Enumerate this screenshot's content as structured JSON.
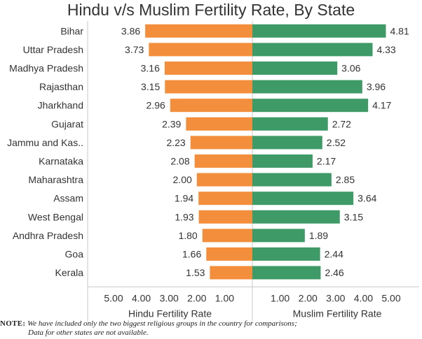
{
  "title": "Hindu v/s Muslim Fertility Rate, By State",
  "note": {
    "label": "NOTE:",
    "line1": "We have included only the two biggest religious groups in the country for comparisons;",
    "line2": "Data for other states are not available."
  },
  "colors": {
    "hindu": "#F28E3C",
    "muslim": "#3E9B68",
    "axis": "#C8C8C8",
    "text": "#333333"
  },
  "chart_data": {
    "type": "bar",
    "title": "Hindu v/s Muslim Fertility Rate, By State",
    "categories": [
      "Bihar",
      "Uttar Pradesh",
      "Madhya Pradesh",
      "Rajasthan",
      "Jharkhand",
      "Gujarat",
      "Jammu and Kas..",
      "Karnataka",
      "Maharashtra",
      "Assam",
      "West Bengal",
      "Andhra Pradesh",
      "Goa",
      "Kerala"
    ],
    "series": [
      {
        "name": "Hindu Fertility Rate",
        "values": [
          3.86,
          3.73,
          3.16,
          3.15,
          2.96,
          2.39,
          2.23,
          2.08,
          2.0,
          1.94,
          1.93,
          1.8,
          1.66,
          1.53
        ],
        "labels": [
          "3.86",
          "3.73",
          "3.16",
          "3.15",
          "2.96",
          "2.39",
          "2.23",
          "2.08",
          "2.00",
          "1.94",
          "1.93",
          "1.80",
          "1.66",
          "1.53"
        ],
        "direction": "left",
        "xlabel": "Hindu Fertility Rate",
        "ticks": [
          "5.00",
          "4.00",
          "3.00",
          "2.00",
          "1.00"
        ],
        "tick_values": [
          5,
          4,
          3,
          2,
          1
        ],
        "xlim": [
          0,
          6
        ]
      },
      {
        "name": "Muslim Fertility Rate",
        "values": [
          4.81,
          4.33,
          3.06,
          3.96,
          4.17,
          2.72,
          2.52,
          2.17,
          2.85,
          3.64,
          3.15,
          1.89,
          2.44,
          2.46
        ],
        "labels": [
          "4.81",
          "4.33",
          "3.06",
          "3.96",
          "4.17",
          "2.72",
          "2.52",
          "2.17",
          "2.85",
          "3.64",
          "3.15",
          "1.89",
          "2.44",
          "2.46"
        ],
        "direction": "right",
        "xlabel": "Muslim Fertility Rate",
        "ticks": [
          "1.00",
          "2.00",
          "3.00",
          "4.00",
          "5.00"
        ],
        "tick_values": [
          1,
          2,
          3,
          4,
          5
        ],
        "xlim": [
          0,
          6
        ]
      }
    ]
  }
}
